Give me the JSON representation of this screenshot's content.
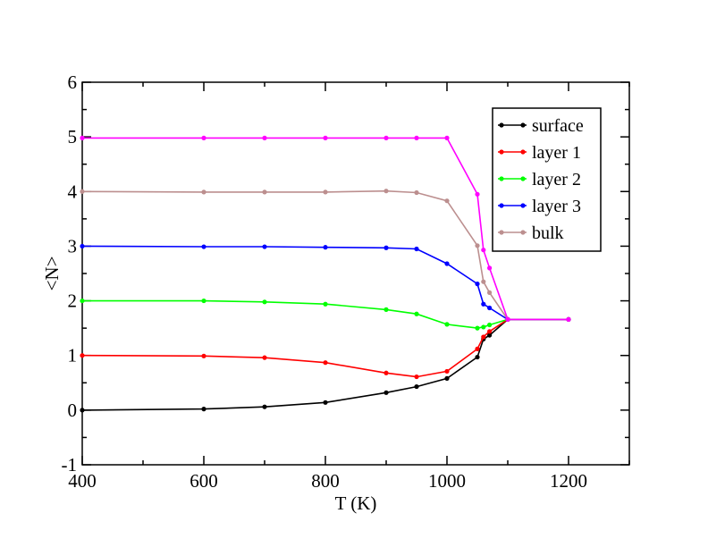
{
  "chart_data": {
    "type": "line",
    "xlabel": "T (K)",
    "ylabel": "<N>",
    "xlim": [
      400,
      1300
    ],
    "ylim": [
      -1,
      6
    ],
    "xticks": [
      400,
      600,
      800,
      1000,
      1200
    ],
    "yticks": [
      -1,
      0,
      1,
      2,
      3,
      4,
      5,
      6
    ],
    "legend_position": "top-right",
    "grid": false,
    "x": [
      400,
      600,
      700,
      800,
      900,
      950,
      1000,
      1050,
      1060,
      1070,
      1100,
      1200
    ],
    "series": [
      {
        "name": "surface",
        "color": "#000000",
        "values": [
          0.0,
          0.02,
          0.06,
          0.14,
          0.32,
          0.43,
          0.58,
          0.97,
          1.3,
          1.37,
          1.66,
          1.66
        ]
      },
      {
        "name": "layer 1",
        "color": "#ff0000",
        "values": [
          1.0,
          0.99,
          0.96,
          0.87,
          0.68,
          0.61,
          0.71,
          1.12,
          1.34,
          1.44,
          1.66,
          1.66
        ]
      },
      {
        "name": "layer 2",
        "color": "#00ff00",
        "values": [
          2.0,
          2.0,
          1.98,
          1.94,
          1.84,
          1.76,
          1.57,
          1.5,
          1.52,
          1.56,
          1.66,
          1.66
        ]
      },
      {
        "name": "layer 3",
        "color": "#0000ff",
        "values": [
          3.0,
          2.99,
          2.99,
          2.98,
          2.97,
          2.95,
          2.68,
          2.31,
          1.94,
          1.87,
          1.66,
          1.66
        ]
      },
      {
        "name": "bulk",
        "color": "#bc8f8f",
        "values": [
          4.0,
          3.99,
          3.99,
          3.99,
          4.01,
          3.98,
          3.83,
          3.01,
          2.35,
          2.15,
          1.66,
          1.66
        ]
      },
      {
        "name": "",
        "color": "#ff00ff",
        "values": [
          4.98,
          4.98,
          4.98,
          4.98,
          4.98,
          4.98,
          4.98,
          3.95,
          2.93,
          2.6,
          1.66,
          1.66
        ]
      }
    ]
  }
}
